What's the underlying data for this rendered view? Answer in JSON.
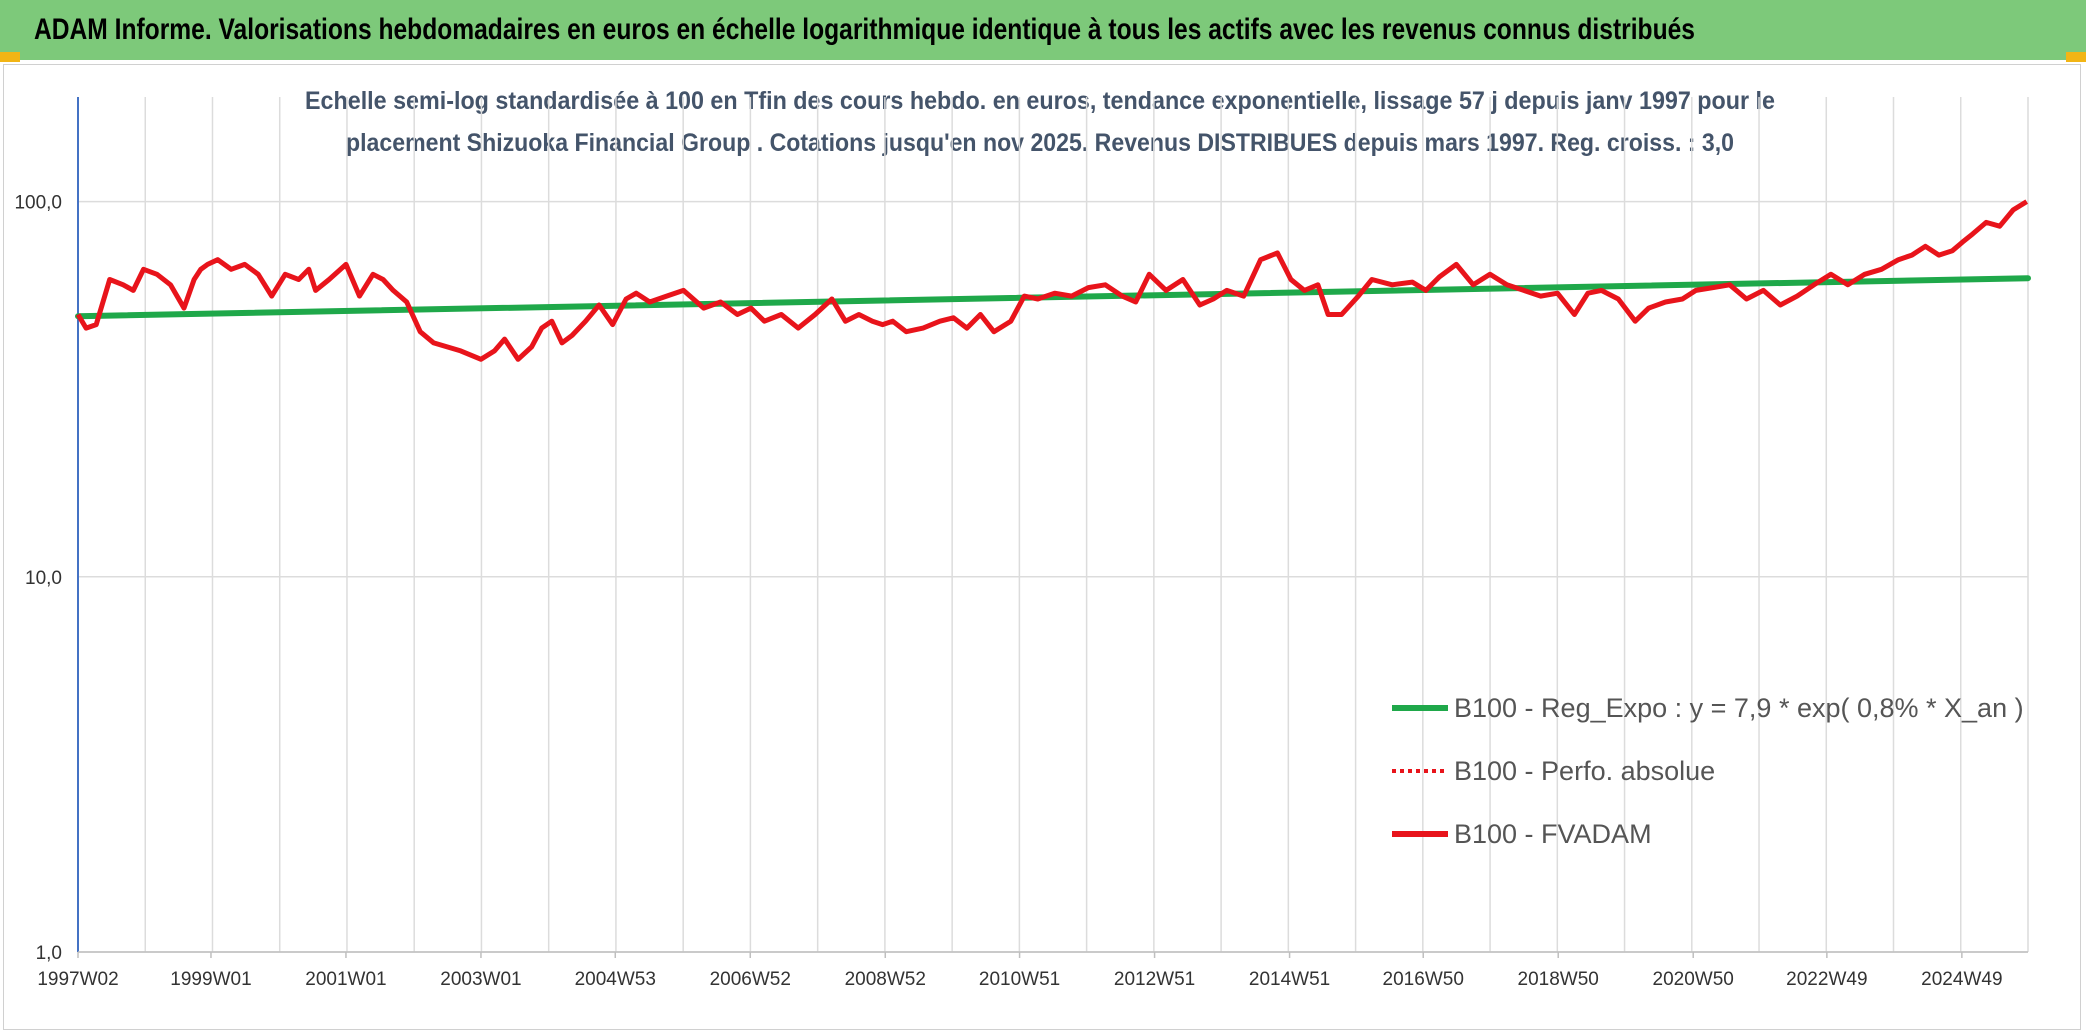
{
  "header": {
    "title": "ADAM Informe. Valorisations hebdomadaires en euros en échelle logarithmique identique à tous les actifs avec les revenus connus distribués"
  },
  "colors": {
    "header_bg": "#7dc97a",
    "corner_accent": "#f2b515",
    "regression_line": "#1fa84a",
    "fvadam_line": "#e8141b",
    "perfo_line": "#e8141b",
    "subtitle_text": "#44546a",
    "grid": "#dcdcdc",
    "y_axis": "#4472c4"
  },
  "chart_data": {
    "type": "line",
    "title_lines": [
      "Echelle semi-log standardisée à 100 en Tfin des cours hebdo. en euros, tendance exponentielle, lissage 57 j depuis janv 1997 pour le",
      "placement Shizuoka Financial Group . Cotations jusqu'en nov 2025. Revenus DISTRIBUES depuis mars 1997. Reg. croiss. : 3,0"
    ],
    "y_scale": "log",
    "ylim": [
      1,
      190
    ],
    "y_ticks": [
      {
        "value": 1,
        "label": "1,0"
      },
      {
        "value": 10,
        "label": "10,0"
      },
      {
        "value": 100,
        "label": "100,0"
      }
    ],
    "xlim": [
      1997.03,
      2025.92
    ],
    "x_ticks": [
      {
        "value": 1997.03,
        "label": "1997W02"
      },
      {
        "value": 1999.0,
        "label": "1999W01"
      },
      {
        "value": 2001.0,
        "label": "2001W01"
      },
      {
        "value": 2003.0,
        "label": "2003W01"
      },
      {
        "value": 2004.99,
        "label": "2004W53"
      },
      {
        "value": 2006.99,
        "label": "2006W52"
      },
      {
        "value": 2008.99,
        "label": "2008W52"
      },
      {
        "value": 2010.98,
        "label": "2010W51"
      },
      {
        "value": 2012.98,
        "label": "2012W51"
      },
      {
        "value": 2014.98,
        "label": "2014W51"
      },
      {
        "value": 2016.96,
        "label": "2016W50"
      },
      {
        "value": 2018.96,
        "label": "2018W50"
      },
      {
        "value": 2020.96,
        "label": "2020W50"
      },
      {
        "value": 2022.94,
        "label": "2022W49"
      },
      {
        "value": 2024.94,
        "label": "2024W49"
      }
    ],
    "grid": true,
    "legend_position": "lower-right",
    "series": [
      {
        "name": "B100 - Reg_Expo : y = 7,9 * exp( 0,8% *  X_an )",
        "style": "solid",
        "x": [
          1997.03,
          2025.92
        ],
        "values": [
          49.5,
          62.5
        ]
      },
      {
        "name": "B100 - Perfo. absolue",
        "style": "dotted",
        "x": [],
        "values": []
      },
      {
        "name": "B100 - FVADAM",
        "style": "solid",
        "x": [
          1997.03,
          1997.15,
          1997.3,
          1997.5,
          1997.7,
          1997.85,
          1998.0,
          1998.2,
          1998.4,
          1998.6,
          1998.75,
          1998.85,
          1998.95,
          1999.1,
          1999.3,
          1999.5,
          1999.7,
          1999.9,
          2000.1,
          2000.3,
          2000.45,
          2000.55,
          2000.75,
          2001.0,
          2001.2,
          2001.4,
          2001.55,
          2001.7,
          2001.9,
          2002.1,
          2002.3,
          2002.5,
          2002.7,
          2003.0,
          2003.2,
          2003.35,
          2003.55,
          2003.75,
          2003.9,
          2004.05,
          2004.2,
          2004.35,
          2004.55,
          2004.75,
          2004.95,
          2005.15,
          2005.3,
          2005.5,
          2005.75,
          2006.0,
          2006.3,
          2006.55,
          2006.8,
          2007.0,
          2007.2,
          2007.45,
          2007.7,
          2007.95,
          2008.2,
          2008.4,
          2008.6,
          2008.8,
          2008.95,
          2009.1,
          2009.3,
          2009.55,
          2009.8,
          2010.0,
          2010.2,
          2010.4,
          2010.6,
          2010.85,
          2011.05,
          2011.25,
          2011.5,
          2011.75,
          2012.0,
          2012.25,
          2012.5,
          2012.7,
          2012.9,
          2013.15,
          2013.4,
          2013.65,
          2013.85,
          2014.05,
          2014.3,
          2014.55,
          2014.8,
          2015.0,
          2015.2,
          2015.4,
          2015.55,
          2015.75,
          2016.0,
          2016.2,
          2016.5,
          2016.8,
          2017.0,
          2017.2,
          2017.45,
          2017.7,
          2017.95,
          2018.2,
          2018.45,
          2018.7,
          2018.95,
          2019.2,
          2019.4,
          2019.6,
          2019.85,
          2020.1,
          2020.3,
          2020.55,
          2020.8,
          2021.0,
          2021.25,
          2021.5,
          2021.75,
          2022.0,
          2022.25,
          2022.5,
          2022.75,
          2023.0,
          2023.25,
          2023.5,
          2023.75,
          2024.0,
          2024.2,
          2024.4,
          2024.6,
          2024.8,
          2024.95,
          2025.1,
          2025.3,
          2025.5,
          2025.7,
          2025.9
        ],
        "values": [
          50,
          46,
          47,
          62,
          60,
          58,
          66,
          64,
          60,
          52,
          62,
          66,
          68,
          70,
          66,
          68,
          64,
          56,
          64,
          62,
          66,
          58,
          62,
          68,
          56,
          64,
          62,
          58,
          54,
          45,
          42,
          41,
          40,
          38,
          40,
          43,
          38,
          41,
          46,
          48,
          42,
          44,
          48,
          53,
          47,
          55,
          57,
          54,
          56,
          58,
          52,
          54,
          50,
          52,
          48,
          50,
          46,
          50,
          55,
          48,
          50,
          48,
          47,
          48,
          45,
          46,
          48,
          49,
          46,
          50,
          45,
          48,
          56,
          55,
          57,
          56,
          59,
          60,
          56,
          54,
          64,
          58,
          62,
          53,
          55,
          58,
          56,
          70,
          73,
          62,
          58,
          60,
          50,
          50,
          56,
          62,
          60,
          61,
          58,
          63,
          68,
          60,
          64,
          60,
          58,
          56,
          57,
          50,
          57,
          58,
          55,
          48,
          52,
          54,
          55,
          58,
          59,
          60,
          55,
          58,
          53,
          56,
          60,
          64,
          60,
          64,
          66,
          70,
          72,
          76,
          72,
          74,
          78,
          82,
          88,
          86,
          95,
          100
        ]
      }
    ]
  }
}
